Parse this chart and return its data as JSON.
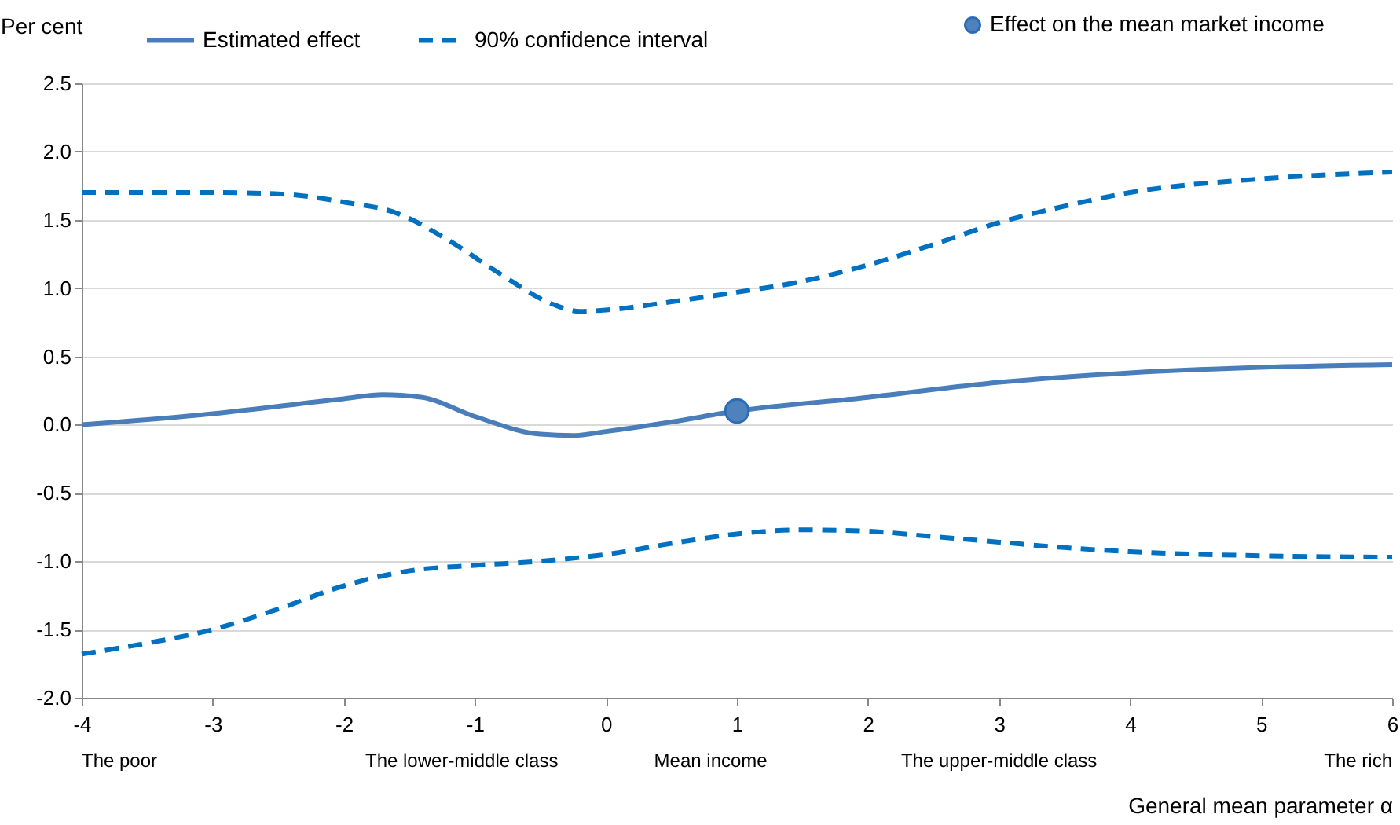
{
  "chart_data": {
    "type": "line",
    "ylabel": "Per cent",
    "xlabel": "General mean parameter α",
    "xlim": [
      -4,
      6
    ],
    "xticks": [
      -4,
      -3,
      -2,
      -1,
      0,
      1,
      2,
      3,
      4,
      5,
      6
    ],
    "ylim": [
      -2,
      2.5
    ],
    "yticks": [
      {
        "value": -2,
        "label": "-2.0"
      },
      -1.5,
      {
        "value": -1,
        "label": "-1.0"
      },
      -0.5,
      {
        "value": 0,
        "label": "0.0"
      },
      0.5,
      {
        "value": 1,
        "label": "1.0"
      },
      1.5,
      {
        "value": 2,
        "label": "2.0"
      },
      2.5
    ],
    "grid": "y",
    "legend": "top",
    "series": [
      {
        "name": "Estimated effect",
        "color": "#4a7ebb",
        "line_style": "solid",
        "x": [
          -4,
          -3,
          -2,
          -1.7,
          -1.4,
          -1,
          -0.5,
          -0.25,
          0,
          0.5,
          1,
          2,
          3,
          4,
          5,
          6
        ],
        "values": [
          0.0,
          0.08,
          0.19,
          0.22,
          0.2,
          0.06,
          -0.07,
          -0.08,
          -0.05,
          0.02,
          0.1,
          0.2,
          0.31,
          0.38,
          0.42,
          0.44
        ]
      },
      {
        "name": "90% confidence interval",
        "color": "#0070c0",
        "line_style": "dashed",
        "x": [
          -4,
          -3,
          -2.5,
          -2,
          -1.6,
          -1.2,
          -0.8,
          -0.4,
          -0.2,
          0,
          0.5,
          1,
          1.5,
          2,
          2.5,
          3,
          3.5,
          4,
          5,
          6
        ],
        "values": [
          1.7,
          1.7,
          1.69,
          1.63,
          1.55,
          1.35,
          1.1,
          0.88,
          0.83,
          0.84,
          0.9,
          0.97,
          1.05,
          1.17,
          1.32,
          1.48,
          1.6,
          1.7,
          1.8,
          1.85
        ]
      },
      {
        "color": "#0070c0",
        "line_style": "dashed",
        "x": [
          -4,
          -3.5,
          -3,
          -2.5,
          -2,
          -1.5,
          -1,
          -0.5,
          0,
          0.5,
          1,
          1.5,
          2,
          2.5,
          3,
          3.5,
          4,
          5,
          6
        ],
        "values": [
          -1.68,
          -1.6,
          -1.5,
          -1.35,
          -1.18,
          -1.07,
          -1.03,
          -1.0,
          -0.95,
          -0.87,
          -0.8,
          -0.77,
          -0.78,
          -0.82,
          -0.86,
          -0.9,
          -0.93,
          -0.96,
          -0.97
        ]
      },
      {
        "name": "Effect on the mean market income",
        "type": "scatter",
        "marker": "circle",
        "color": "#4f81bd",
        "x": [
          1
        ],
        "values": [
          0.1
        ]
      }
    ],
    "annotations": [
      "The poor",
      "The lower-middle class",
      "Mean income",
      "The upper-middle class",
      "The rich"
    ]
  }
}
